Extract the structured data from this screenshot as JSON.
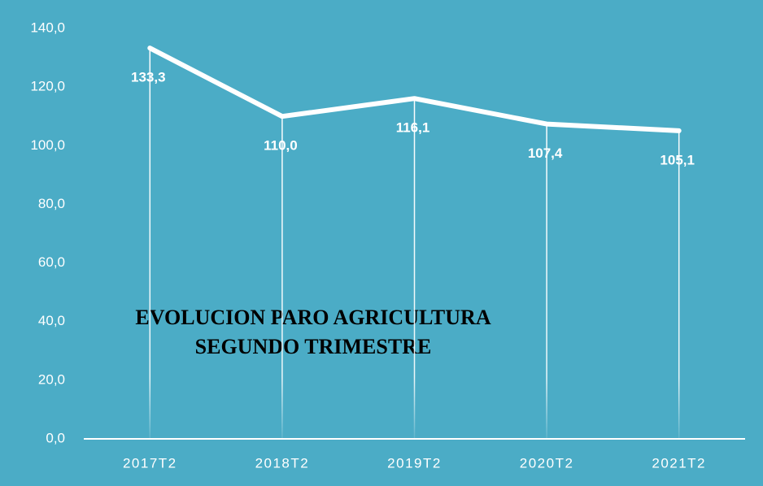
{
  "chart_data": {
    "type": "line",
    "title": [
      "EVOLUCION PARO AGRICULTURA",
      "SEGUNDO TRIMESTRE"
    ],
    "categories": [
      "2017T2",
      "2018T2",
      "2019T2",
      "2020T2",
      "2021T2"
    ],
    "values": [
      133.3,
      110.0,
      116.1,
      107.4,
      105.1
    ],
    "value_labels": [
      "133,3",
      "110,0",
      "116,1",
      "107,4",
      "105,1"
    ],
    "color": "#ffffff",
    "ylim": [
      0,
      140
    ],
    "yticks": [
      {
        "value": 0,
        "label": "0,0"
      },
      {
        "value": 20,
        "label": "20,0"
      },
      {
        "value": 40,
        "label": "40,0"
      },
      {
        "value": 60,
        "label": "60,0"
      },
      {
        "value": 80,
        "label": "80,0"
      },
      {
        "value": 100,
        "label": "100,0"
      },
      {
        "value": 120,
        "label": "120,0"
      },
      {
        "value": 140,
        "label": "140,0"
      }
    ],
    "drop_lines": true
  }
}
